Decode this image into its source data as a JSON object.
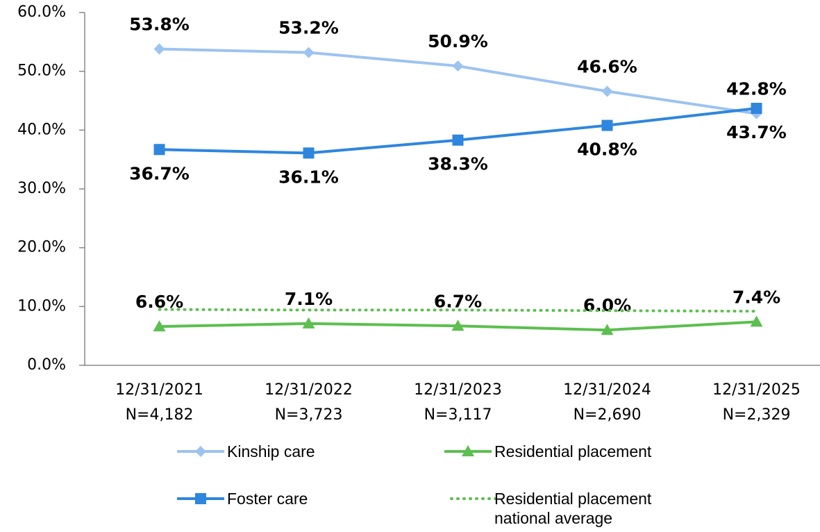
{
  "chart_data": {
    "type": "line",
    "categories": [
      "12/31/2021",
      "12/31/2022",
      "12/31/2023",
      "12/31/2024",
      "12/31/2025"
    ],
    "category_counts": [
      "N=4,182",
      "N=3,723",
      "N=3,117",
      "N=2,690",
      "N=2,329"
    ],
    "ylim": [
      0,
      60
    ],
    "yticks": [
      {
        "value": 0,
        "label": "0.0%"
      },
      {
        "value": 10,
        "label": "10.0%"
      },
      {
        "value": 20,
        "label": "20.0%"
      },
      {
        "value": 30,
        "label": "30.0%"
      },
      {
        "value": 40,
        "label": "40.0%"
      },
      {
        "value": 50,
        "label": "50.0%"
      },
      {
        "value": 60,
        "label": "60.0%"
      }
    ],
    "series": [
      {
        "name": "Kinship care",
        "color": "#9dc3f0",
        "marker": "diamond",
        "label_position": "above",
        "values": [
          53.8,
          53.2,
          50.9,
          46.6,
          42.8
        ],
        "value_labels": [
          "53.8%",
          "53.2%",
          "50.9%",
          "46.6%",
          "42.8%"
        ]
      },
      {
        "name": "Residential placement",
        "color": "#5cbf4f",
        "marker": "triangle",
        "label_position": "above",
        "values": [
          6.6,
          7.1,
          6.7,
          6.0,
          7.4
        ],
        "value_labels": [
          "6.6%",
          "7.1%",
          "6.7%",
          "6.0%",
          "7.4%"
        ]
      },
      {
        "name": "Foster care",
        "color": "#2e86de",
        "marker": "square",
        "label_position": "below",
        "values": [
          36.7,
          36.1,
          38.3,
          40.8,
          43.7
        ],
        "value_labels": [
          "36.7%",
          "36.1%",
          "38.3%",
          "40.8%",
          "43.7%"
        ]
      },
      {
        "name": "Residential placement national average",
        "color": "#5cbf4f",
        "marker": "none",
        "dash": "dotted",
        "values": [
          9.5,
          9.4,
          9.4,
          9.3,
          9.2
        ]
      }
    ]
  }
}
